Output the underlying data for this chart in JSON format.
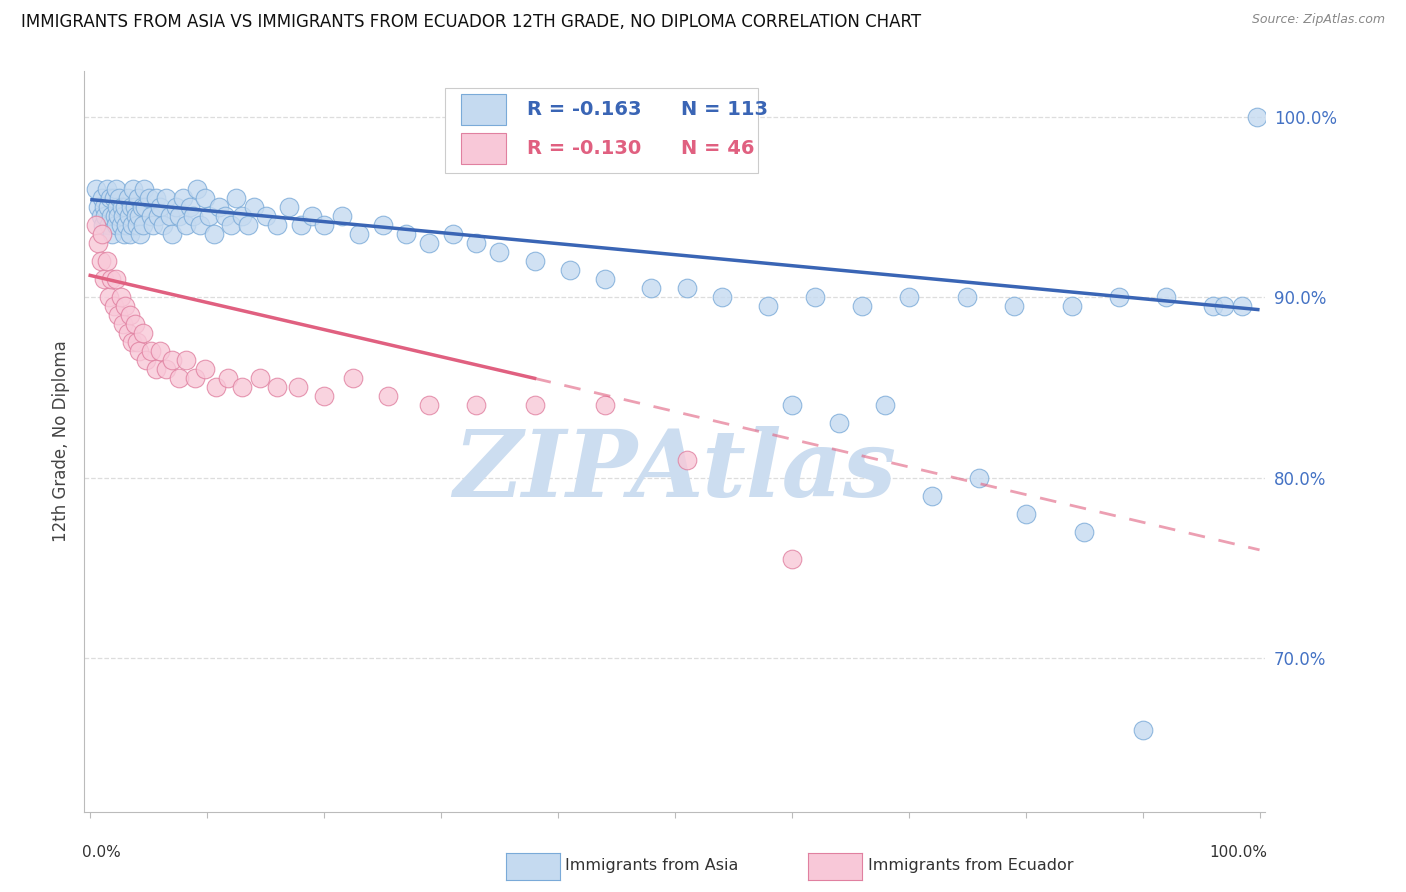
{
  "title": "IMMIGRANTS FROM ASIA VS IMMIGRANTS FROM ECUADOR 12TH GRADE, NO DIPLOMA CORRELATION CHART",
  "source": "Source: ZipAtlas.com",
  "ylabel": "12th Grade, No Diploma",
  "legend_label_asia": "Immigrants from Asia",
  "legend_label_ecuador": "Immigrants from Ecuador",
  "r_asia": "-0.163",
  "n_asia": "113",
  "r_ecuador": "-0.130",
  "n_ecuador": "46",
  "ytick_values": [
    0.7,
    0.8,
    0.9,
    1.0
  ],
  "ytick_labels": [
    "70.0%",
    "80.0%",
    "90.0%",
    "100.0%"
  ],
  "xlim": [
    -0.005,
    1.005
  ],
  "ylim": [
    0.615,
    1.025
  ],
  "color_asia_fill": "#c5daf0",
  "color_asia_edge": "#7aaad8",
  "color_asia_line": "#3a65b5",
  "color_ecuador_fill": "#f8c8d8",
  "color_ecuador_edge": "#e080a0",
  "color_ecuador_line": "#e06080",
  "color_title": "#111111",
  "color_source": "#888888",
  "color_right_axis": "#4472c4",
  "background": "#ffffff",
  "watermark_text": "ZIPAtlas",
  "watermark_color": "#ccddf0",
  "grid_color": "#dddddd",
  "asia_x": [
    0.005,
    0.007,
    0.009,
    0.01,
    0.011,
    0.012,
    0.013,
    0.014,
    0.015,
    0.016,
    0.017,
    0.018,
    0.019,
    0.02,
    0.021,
    0.022,
    0.022,
    0.023,
    0.024,
    0.025,
    0.026,
    0.027,
    0.028,
    0.029,
    0.03,
    0.031,
    0.032,
    0.033,
    0.034,
    0.035,
    0.036,
    0.037,
    0.038,
    0.039,
    0.04,
    0.041,
    0.042,
    0.043,
    0.044,
    0.045,
    0.046,
    0.047,
    0.05,
    0.052,
    0.054,
    0.056,
    0.058,
    0.06,
    0.062,
    0.065,
    0.068,
    0.07,
    0.073,
    0.076,
    0.079,
    0.082,
    0.085,
    0.088,
    0.091,
    0.094,
    0.098,
    0.102,
    0.106,
    0.11,
    0.115,
    0.12,
    0.125,
    0.13,
    0.135,
    0.14,
    0.15,
    0.16,
    0.17,
    0.18,
    0.19,
    0.2,
    0.215,
    0.23,
    0.25,
    0.27,
    0.29,
    0.31,
    0.33,
    0.35,
    0.38,
    0.41,
    0.44,
    0.48,
    0.51,
    0.54,
    0.58,
    0.62,
    0.66,
    0.7,
    0.75,
    0.79,
    0.84,
    0.88,
    0.92,
    0.96,
    0.97,
    0.985,
    0.998,
    0.6,
    0.64,
    0.68,
    0.72,
    0.76,
    0.8,
    0.85,
    0.9
  ],
  "asia_y": [
    0.96,
    0.95,
    0.945,
    0.955,
    0.94,
    0.95,
    0.945,
    0.96,
    0.95,
    0.94,
    0.955,
    0.945,
    0.935,
    0.955,
    0.945,
    0.94,
    0.96,
    0.95,
    0.945,
    0.955,
    0.94,
    0.95,
    0.945,
    0.935,
    0.95,
    0.94,
    0.955,
    0.945,
    0.935,
    0.95,
    0.94,
    0.96,
    0.95,
    0.945,
    0.94,
    0.955,
    0.945,
    0.935,
    0.95,
    0.94,
    0.96,
    0.95,
    0.955,
    0.945,
    0.94,
    0.955,
    0.945,
    0.95,
    0.94,
    0.955,
    0.945,
    0.935,
    0.95,
    0.945,
    0.955,
    0.94,
    0.95,
    0.945,
    0.96,
    0.94,
    0.955,
    0.945,
    0.935,
    0.95,
    0.945,
    0.94,
    0.955,
    0.945,
    0.94,
    0.95,
    0.945,
    0.94,
    0.95,
    0.94,
    0.945,
    0.94,
    0.945,
    0.935,
    0.94,
    0.935,
    0.93,
    0.935,
    0.93,
    0.925,
    0.92,
    0.915,
    0.91,
    0.905,
    0.905,
    0.9,
    0.895,
    0.9,
    0.895,
    0.9,
    0.9,
    0.895,
    0.895,
    0.9,
    0.9,
    0.895,
    0.895,
    0.895,
    1.0,
    0.84,
    0.83,
    0.84,
    0.79,
    0.8,
    0.78,
    0.77,
    0.66
  ],
  "ecuador_x": [
    0.005,
    0.007,
    0.009,
    0.01,
    0.012,
    0.014,
    0.016,
    0.018,
    0.02,
    0.022,
    0.024,
    0.026,
    0.028,
    0.03,
    0.032,
    0.034,
    0.036,
    0.038,
    0.04,
    0.042,
    0.045,
    0.048,
    0.052,
    0.056,
    0.06,
    0.065,
    0.07,
    0.076,
    0.082,
    0.09,
    0.098,
    0.108,
    0.118,
    0.13,
    0.145,
    0.16,
    0.178,
    0.2,
    0.225,
    0.255,
    0.29,
    0.33,
    0.38,
    0.44,
    0.51,
    0.6
  ],
  "ecuador_y": [
    0.94,
    0.93,
    0.92,
    0.935,
    0.91,
    0.92,
    0.9,
    0.91,
    0.895,
    0.91,
    0.89,
    0.9,
    0.885,
    0.895,
    0.88,
    0.89,
    0.875,
    0.885,
    0.875,
    0.87,
    0.88,
    0.865,
    0.87,
    0.86,
    0.87,
    0.86,
    0.865,
    0.855,
    0.865,
    0.855,
    0.86,
    0.85,
    0.855,
    0.85,
    0.855,
    0.85,
    0.85,
    0.845,
    0.855,
    0.845,
    0.84,
    0.84,
    0.84,
    0.84,
    0.81,
    0.755
  ],
  "asia_trend_x0": 0.0,
  "asia_trend_x1": 1.0,
  "asia_trend_y0": 0.954,
  "asia_trend_y1": 0.893,
  "ecuador_trend_solid_x0": 0.0,
  "ecuador_trend_solid_x1": 0.38,
  "ecuador_trend_solid_y0": 0.912,
  "ecuador_trend_solid_y1": 0.855,
  "ecuador_trend_dash_x0": 0.38,
  "ecuador_trend_dash_x1": 1.0,
  "ecuador_trend_dash_y0": 0.855,
  "ecuador_trend_dash_y1": 0.76
}
